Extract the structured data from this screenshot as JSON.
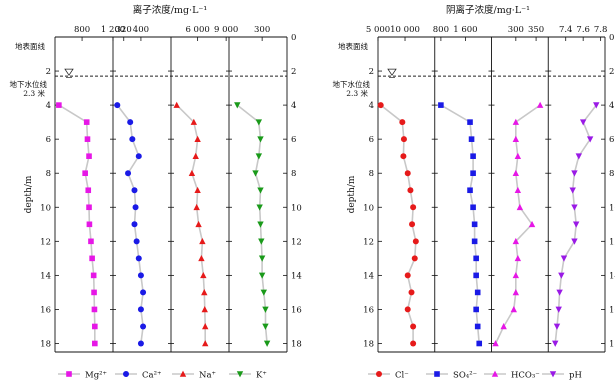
{
  "depth_axis": {
    "label": "depth/m",
    "ticks": [
      0,
      2,
      4,
      6,
      8,
      10,
      12,
      14,
      16,
      18
    ],
    "ground_label": "地表面线",
    "water_table_label": "地下水位线",
    "water_table_value": "2.3 米",
    "water_table_depth": 2.3
  },
  "chart_data": [
    {
      "type": "line",
      "title": "离子浓度/mg·L⁻¹",
      "ylabel": "depth/m",
      "ylim": [
        0,
        18.5
      ],
      "panels": [
        {
          "name": "Mg²⁺",
          "xlim": [
            450,
            1200
          ],
          "xticks": [
            800,
            1200
          ],
          "xtick_labels": [
            "800",
            "1 200"
          ],
          "color": "#e617e6",
          "marker": "square",
          "points": [
            [
              500,
              4
            ],
            [
              860,
              5
            ],
            [
              870,
              6
            ],
            [
              890,
              7
            ],
            [
              840,
              8
            ],
            [
              880,
              9
            ],
            [
              890,
              10
            ],
            [
              895,
              11
            ],
            [
              915,
              12
            ],
            [
              930,
              13
            ],
            [
              950,
              14
            ],
            [
              955,
              15
            ],
            [
              960,
              16
            ],
            [
              965,
              17
            ],
            [
              965,
              18
            ]
          ]
        },
        {
          "name": "Ca²⁺",
          "xlim": [
            270,
            540
          ],
          "xticks": [
            320,
            400
          ],
          "xtick_labels": [
            "320",
            "400"
          ],
          "color": "#1a1ae6",
          "marker": "circle",
          "points": [
            [
              290,
              4
            ],
            [
              350,
              5
            ],
            [
              360,
              6
            ],
            [
              390,
              7
            ],
            [
              340,
              8
            ],
            [
              370,
              9
            ],
            [
              375,
              10
            ],
            [
              370,
              11
            ],
            [
              380,
              12
            ],
            [
              390,
              13
            ],
            [
              400,
              14
            ],
            [
              410,
              15
            ],
            [
              400,
              16
            ],
            [
              410,
              17
            ],
            [
              400,
              18
            ]
          ]
        },
        {
          "name": "Na⁺",
          "xlim": [
            3200,
            9300
          ],
          "xticks": [
            6000,
            9000
          ],
          "xtick_labels": [
            "6 000",
            "9 000"
          ],
          "color": "#e61a1a",
          "marker": "triangle-up",
          "points": [
            [
              3800,
              4
            ],
            [
              5600,
              5
            ],
            [
              6000,
              6
            ],
            [
              5800,
              7
            ],
            [
              5400,
              8
            ],
            [
              6000,
              9
            ],
            [
              5900,
              10
            ],
            [
              6100,
              11
            ],
            [
              6500,
              12
            ],
            [
              6400,
              13
            ],
            [
              6600,
              14
            ],
            [
              6700,
              15
            ],
            [
              6750,
              16
            ],
            [
              6800,
              17
            ],
            [
              6800,
              18
            ]
          ]
        },
        {
          "name": "K⁺",
          "xlim": [
            100,
            450
          ],
          "xticks": [
            300
          ],
          "xtick_labels": [
            "300"
          ],
          "color": "#1a9a1a",
          "marker": "triangle-down",
          "points": [
            [
              150,
              4
            ],
            [
              280,
              5
            ],
            [
              290,
              6
            ],
            [
              280,
              7
            ],
            [
              260,
              8
            ],
            [
              290,
              9
            ],
            [
              285,
              10
            ],
            [
              290,
              11
            ],
            [
              295,
              12
            ],
            [
              300,
              13
            ],
            [
              300,
              14
            ],
            [
              310,
              15
            ],
            [
              320,
              16
            ],
            [
              320,
              17
            ],
            [
              330,
              18
            ]
          ]
        }
      ]
    },
    {
      "type": "line",
      "title": "阴离子浓度/mg·L⁻¹",
      "ylabel": "depth/m",
      "ylim": [
        0,
        18.5
      ],
      "panels": [
        {
          "name": "Cl⁻",
          "xlim": [
            5000,
            15500
          ],
          "xticks": [
            5000,
            10000
          ],
          "xtick_labels": [
            "5 000",
            "10 000"
          ],
          "color": "#e61a1a",
          "marker": "circle",
          "points": [
            [
              5500,
              4
            ],
            [
              9500,
              5
            ],
            [
              9800,
              6
            ],
            [
              9700,
              7
            ],
            [
              10500,
              8
            ],
            [
              11000,
              9
            ],
            [
              11500,
              10
            ],
            [
              11300,
              11
            ],
            [
              12000,
              12
            ],
            [
              11800,
              13
            ],
            [
              10500,
              14
            ],
            [
              11200,
              15
            ],
            [
              10500,
              16
            ],
            [
              11500,
              17
            ],
            [
              11500,
              18
            ]
          ]
        },
        {
          "name": "SO₄²⁻",
          "xlim": [
            600,
            2450
          ],
          "xticks": [
            800,
            1600
          ],
          "xtick_labels": [
            "800",
            "1 600"
          ],
          "color": "#1a1ae6",
          "marker": "square",
          "points": [
            [
              800,
              4
            ],
            [
              1750,
              5
            ],
            [
              1800,
              6
            ],
            [
              1850,
              7
            ],
            [
              1850,
              8
            ],
            [
              1750,
              9
            ],
            [
              1850,
              10
            ],
            [
              1900,
              11
            ],
            [
              1900,
              12
            ],
            [
              1950,
              13
            ],
            [
              1950,
              14
            ],
            [
              2000,
              15
            ],
            [
              1950,
              16
            ],
            [
              2000,
              17
            ],
            [
              2050,
              18
            ]
          ]
        },
        {
          "name": "HCO₃⁻",
          "xlim": [
            240,
            380
          ],
          "xticks": [
            300,
            350
          ],
          "xtick_labels": [
            "300",
            "350"
          ],
          "color": "#e617e6",
          "marker": "triangle-up",
          "points": [
            [
              360,
              4
            ],
            [
              300,
              5
            ],
            [
              300,
              6
            ],
            [
              305,
              7
            ],
            [
              300,
              8
            ],
            [
              305,
              9
            ],
            [
              310,
              10
            ],
            [
              340,
              11
            ],
            [
              300,
              12
            ],
            [
              305,
              13
            ],
            [
              300,
              14
            ],
            [
              300,
              15
            ],
            [
              295,
              16
            ],
            [
              270,
              17
            ],
            [
              250,
              18
            ]
          ]
        },
        {
          "name": "pH",
          "xlim": [
            7.2,
            7.85
          ],
          "xticks": [
            7.4,
            7.6,
            7.8
          ],
          "xtick_labels": [
            "7.4",
            "7.6",
            "7.8"
          ],
          "color": "#9a1ae6",
          "marker": "triangle-down",
          "points": [
            [
              7.75,
              4
            ],
            [
              7.6,
              5
            ],
            [
              7.68,
              6
            ],
            [
              7.55,
              7
            ],
            [
              7.5,
              8
            ],
            [
              7.48,
              9
            ],
            [
              7.5,
              10
            ],
            [
              7.52,
              11
            ],
            [
              7.5,
              12
            ],
            [
              7.38,
              13
            ],
            [
              7.35,
              14
            ],
            [
              7.33,
              15
            ],
            [
              7.32,
              16
            ],
            [
              7.3,
              17
            ],
            [
              7.28,
              18
            ]
          ]
        }
      ]
    }
  ]
}
